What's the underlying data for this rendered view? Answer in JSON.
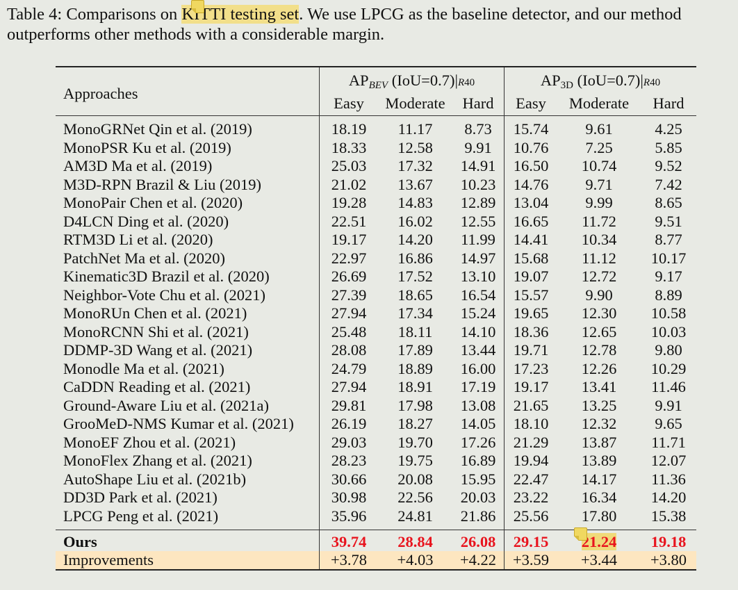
{
  "caption": {
    "prefix": "Table 4: Comparisons on ",
    "highlighted": "KITTI testing set",
    "line1_rest": ". We use LPCG as the baseline detector, and our method",
    "line2": "outperforms other methods with a considerable margin."
  },
  "annotations": {
    "note_icon": "sticky-note-icon",
    "highlight_color": "#f2df8a"
  },
  "table": {
    "approaches_header": "Approaches",
    "groups": [
      {
        "metric": "AP",
        "subscript": "BEV",
        "iou": " (IoU=0.7)|",
        "recall": "R",
        "recall_num": "40"
      },
      {
        "metric": "AP",
        "subscript": "3D",
        "iou": " (IoU=0.7)|",
        "recall": "R",
        "recall_num": "40"
      }
    ],
    "subheaders": [
      "Easy",
      "Moderate",
      "Hard",
      "Easy",
      "Moderate",
      "Hard"
    ],
    "rows": [
      {
        "name": "MonoGRNet Qin et al. (2019)",
        "values": [
          "18.19",
          "11.17",
          "8.73",
          "15.74",
          "9.61",
          "4.25"
        ]
      },
      {
        "name": "MonoPSR Ku et al. (2019)",
        "values": [
          "18.33",
          "12.58",
          "9.91",
          "10.76",
          "7.25",
          "5.85"
        ]
      },
      {
        "name": "AM3D Ma et al. (2019)",
        "values": [
          "25.03",
          "17.32",
          "14.91",
          "16.50",
          "10.74",
          "9.52"
        ]
      },
      {
        "name": "M3D-RPN Brazil & Liu (2019)",
        "values": [
          "21.02",
          "13.67",
          "10.23",
          "14.76",
          "9.71",
          "7.42"
        ]
      },
      {
        "name": "MonoPair Chen et al. (2020)",
        "values": [
          "19.28",
          "14.83",
          "12.89",
          "13.04",
          "9.99",
          "8.65"
        ]
      },
      {
        "name": "D4LCN Ding et al. (2020)",
        "values": [
          "22.51",
          "16.02",
          "12.55",
          "16.65",
          "11.72",
          "9.51"
        ]
      },
      {
        "name": "RTM3D Li et al. (2020)",
        "values": [
          "19.17",
          "14.20",
          "11.99",
          "14.41",
          "10.34",
          "8.77"
        ]
      },
      {
        "name": "PatchNet Ma et al. (2020)",
        "values": [
          "22.97",
          "16.86",
          "14.97",
          "15.68",
          "11.12",
          "10.17"
        ]
      },
      {
        "name": "Kinematic3D Brazil et al. (2020)",
        "values": [
          "26.69",
          "17.52",
          "13.10",
          "19.07",
          "12.72",
          "9.17"
        ]
      },
      {
        "name": "Neighbor-Vote Chu et al. (2021)",
        "values": [
          "27.39",
          "18.65",
          "16.54",
          "15.57",
          "9.90",
          "8.89"
        ]
      },
      {
        "name": "MonoRUn Chen et al. (2021)",
        "values": [
          "27.94",
          "17.34",
          "15.24",
          "19.65",
          "12.30",
          "10.58"
        ]
      },
      {
        "name": "MonoRCNN Shi et al. (2021)",
        "values": [
          "25.48",
          "18.11",
          "14.10",
          "18.36",
          "12.65",
          "10.03"
        ]
      },
      {
        "name": "DDMP-3D Wang et al. (2021)",
        "values": [
          "28.08",
          "17.89",
          "13.44",
          "19.71",
          "12.78",
          "9.80"
        ]
      },
      {
        "name": "Monodle Ma et al. (2021)",
        "values": [
          "24.79",
          "18.89",
          "16.00",
          "17.23",
          "12.26",
          "10.29"
        ]
      },
      {
        "name": "CaDDN Reading et al. (2021)",
        "values": [
          "27.94",
          "18.91",
          "17.19",
          "19.17",
          "13.41",
          "11.46"
        ]
      },
      {
        "name": "Ground-Aware Liu et al. (2021a)",
        "values": [
          "29.81",
          "17.98",
          "13.08",
          "21.65",
          "13.25",
          "9.91"
        ]
      },
      {
        "name": "GrooMeD-NMS Kumar et al. (2021)",
        "values": [
          "26.19",
          "18.27",
          "14.05",
          "18.10",
          "12.32",
          "9.65"
        ]
      },
      {
        "name": "MonoEF Zhou et al. (2021)",
        "values": [
          "29.03",
          "19.70",
          "17.26",
          "21.29",
          "13.87",
          "11.71"
        ]
      },
      {
        "name": "MonoFlex Zhang et al. (2021)",
        "values": [
          "28.23",
          "19.75",
          "16.89",
          "19.94",
          "13.89",
          "12.07"
        ]
      },
      {
        "name": "AutoShape Liu et al. (2021b)",
        "values": [
          "30.66",
          "20.08",
          "15.95",
          "22.47",
          "14.17",
          "11.36"
        ]
      },
      {
        "name": "DD3D Park et al. (2021)",
        "values": [
          "30.98",
          "22.56",
          "20.03",
          "23.22",
          "16.34",
          "14.20"
        ]
      },
      {
        "name": "LPCG Peng et al. (2021)",
        "values": [
          "35.96",
          "24.81",
          "21.86",
          "25.56",
          "17.80",
          "15.38"
        ]
      }
    ],
    "ours": {
      "name": "Ours",
      "values": [
        "39.74",
        "28.84",
        "26.08",
        "29.15",
        "21.24",
        "19.18"
      ],
      "color": "#e8141e"
    },
    "improvements": {
      "name": "Improvements",
      "values": [
        "+3.78",
        "+4.03",
        "+4.22",
        "+3.59",
        "+3.44",
        "+3.80"
      ],
      "background": "#fde6c0"
    }
  }
}
